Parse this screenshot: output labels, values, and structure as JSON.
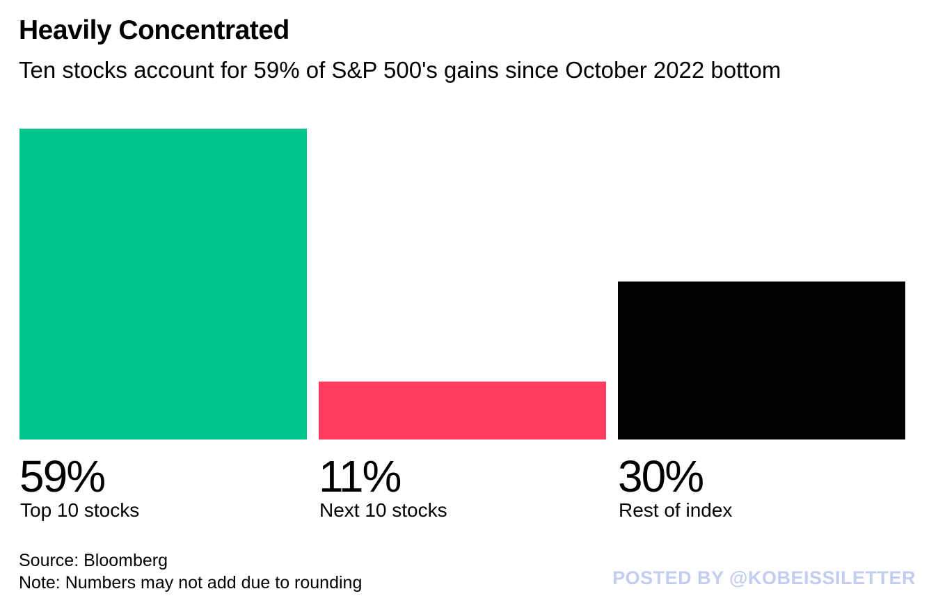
{
  "chart_data": {
    "type": "bar",
    "title": "Heavily Concentrated",
    "subtitle": "Ten stocks account for 59% of S&P 500's gains since October 2022 bottom",
    "categories": [
      "Top 10 stocks",
      "Next 10 stocks",
      "Rest of index"
    ],
    "values": [
      59,
      11,
      30
    ],
    "value_labels": [
      "59%",
      "11%",
      "30%"
    ],
    "colors": [
      "#00c58c",
      "#ff3b5f",
      "#000000"
    ],
    "ylim": [
      0,
      59
    ],
    "grid": false,
    "xlabel": "",
    "ylabel": ""
  },
  "footer": {
    "source": "Source: Bloomberg",
    "note": "Note: Numbers may not add due to rounding",
    "watermark": "POSTED BY @KOBEISSILETTER"
  }
}
